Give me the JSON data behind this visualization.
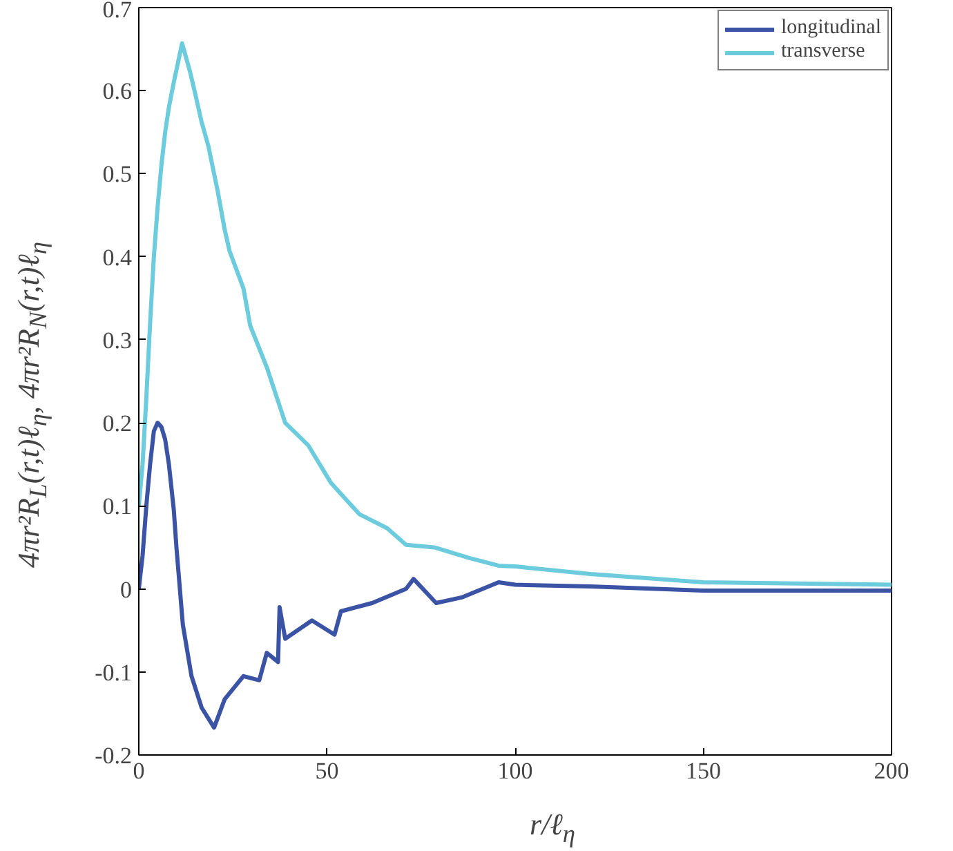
{
  "chart_data": {
    "type": "line",
    "xlabel": "r/ℓ$_{η}$",
    "ylabel": "4πr²R$_{L}$(r,t)ℓ$_{η}$, 4πr²R$_{N}$(r,t)ℓ$_{η}$",
    "xlim": [
      0,
      200
    ],
    "ylim": [
      -0.2,
      0.7
    ],
    "xticks": [
      0,
      50,
      100,
      150,
      200
    ],
    "yticks": [
      -0.2,
      -0.1,
      0,
      0.1,
      0.2,
      0.3,
      0.4,
      0.5,
      0.6,
      0.7
    ],
    "grid": false,
    "legend": "top right",
    "line_style": "solid",
    "marker": "none",
    "series": [
      {
        "name": "longitudinal",
        "color": "#3a53a4",
        "x": [
          0,
          1,
          2,
          3,
          4,
          5,
          6,
          7,
          8,
          9.3,
          10,
          11.7,
          14,
          16.7,
          20,
          22.8,
          27.8,
          32,
          34,
          37,
          37.4,
          38.9,
          46,
          52,
          53.7,
          62,
          71,
          73,
          79,
          86,
          95.6,
          100,
          120,
          150,
          200
        ],
        "values": [
          0,
          0.04,
          0.1,
          0.15,
          0.19,
          0.2,
          0.195,
          0.18,
          0.15,
          0.095,
          0.05,
          -0.043,
          -0.105,
          -0.143,
          -0.167,
          -0.133,
          -0.105,
          -0.11,
          -0.077,
          -0.088,
          -0.022,
          -0.06,
          -0.038,
          -0.055,
          -0.027,
          -0.017,
          0.0,
          0.012,
          -0.017,
          -0.01,
          0.008,
          0.005,
          0.003,
          -0.002,
          -0.002
        ]
      },
      {
        "name": "transverse",
        "color": "#6ccbdc",
        "x": [
          0,
          1,
          2,
          3,
          4,
          5,
          6,
          7,
          8,
          9.3,
          11.5,
          13.6,
          14.8,
          16.7,
          18.5,
          21,
          22.8,
          24.1,
          27.8,
          29.6,
          34,
          38.9,
          45,
          51,
          58.6,
          66,
          71,
          78.5,
          88,
          95.6,
          100,
          120,
          150,
          200
        ],
        "values": [
          0.1,
          0.15,
          0.23,
          0.32,
          0.4,
          0.46,
          0.51,
          0.55,
          0.58,
          0.61,
          0.657,
          0.623,
          0.6,
          0.562,
          0.533,
          0.478,
          0.433,
          0.407,
          0.362,
          0.317,
          0.267,
          0.2,
          0.173,
          0.128,
          0.09,
          0.073,
          0.053,
          0.05,
          0.037,
          0.028,
          0.027,
          0.018,
          0.008,
          0.005
        ]
      }
    ]
  }
}
